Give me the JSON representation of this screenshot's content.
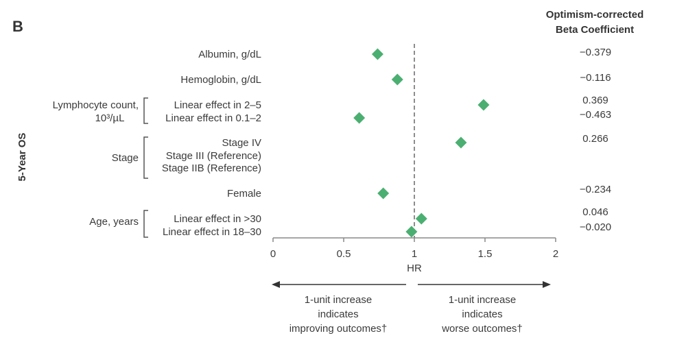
{
  "chart_data": {
    "type": "scatter",
    "subtype": "forest-plot",
    "panel_label": "B",
    "ylabel": "5-Year OS",
    "xlabel": "HR",
    "xlim": [
      0,
      2
    ],
    "x_ticks": [
      "0",
      "0.5",
      "1",
      "1.5",
      "2"
    ],
    "x_tick_values": [
      0,
      0.5,
      1,
      1.5,
      2
    ],
    "reference_line": 1,
    "marker_color": "#4caf72",
    "coef_header": [
      "Optimism-corrected",
      "Beta Coefficient"
    ],
    "rows": [
      {
        "group": "",
        "label": "Albumin, g/dL",
        "hr": 0.74,
        "coef": "−0.379"
      },
      {
        "group": "",
        "label": "Hemoglobin, g/dL",
        "hr": 0.88,
        "coef": "−0.116"
      },
      {
        "group": "Lymphocyte count, 10³/µL",
        "label": "Linear effect in 2–5",
        "hr": 1.49,
        "coef": "0.369"
      },
      {
        "group": "Lymphocyte count, 10³/µL",
        "label": "Linear effect in 0.1–2",
        "hr": 0.61,
        "coef": "−0.463"
      },
      {
        "group": "Stage",
        "label": "Stage IV",
        "hr": 1.33,
        "coef": "0.266"
      },
      {
        "group": "Stage",
        "label": "Stage III (Reference)",
        "hr": null,
        "coef": ""
      },
      {
        "group": "Stage",
        "label": "Stage IIB (Reference)",
        "hr": null,
        "coef": ""
      },
      {
        "group": "",
        "label": "Female",
        "hr": 0.78,
        "coef": "−0.234"
      },
      {
        "group": "Age, years",
        "label": "Linear effect in >30",
        "hr": 1.05,
        "coef": "0.046"
      },
      {
        "group": "Age, years",
        "label": "Linear effect in 18–30",
        "hr": 0.98,
        "coef": "−0.020"
      }
    ],
    "groups": [
      {
        "name": "Lymphocyte count,",
        "name2": "10³/µL"
      },
      {
        "name": "Stage"
      },
      {
        "name": "Age, years"
      }
    ],
    "annotations": {
      "left": [
        "1-unit increase",
        "indicates",
        "improving outcomes†"
      ],
      "right": [
        "1-unit increase",
        "indicates",
        "worse outcomes†"
      ]
    }
  }
}
